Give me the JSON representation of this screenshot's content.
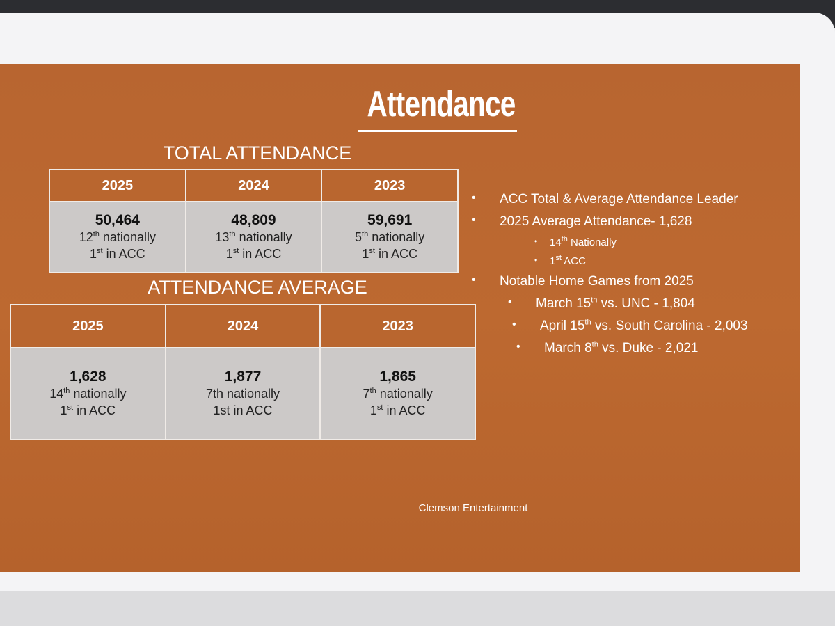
{
  "title": "Attendance",
  "tables": [
    {
      "heading": "TOTAL ATTENDANCE",
      "columns": [
        "2025",
        "2024",
        "2023"
      ],
      "cells": [
        {
          "value": "50,464",
          "lines": [
            [
              {
                "t": "12"
              },
              {
                "sup": "th"
              },
              {
                "t": " nationally"
              }
            ],
            [
              {
                "t": "1"
              },
              {
                "sup": "st"
              },
              {
                "t": " in ACC"
              }
            ]
          ]
        },
        {
          "value": "48,809",
          "lines": [
            [
              {
                "t": "13"
              },
              {
                "sup": "th"
              },
              {
                "t": " nationally"
              }
            ],
            [
              {
                "t": "1"
              },
              {
                "sup": "st"
              },
              {
                "t": " in ACC"
              }
            ]
          ]
        },
        {
          "value": "59,691",
          "lines": [
            [
              {
                "t": "5"
              },
              {
                "sup": "th"
              },
              {
                "t": " nationally"
              }
            ],
            [
              {
                "t": "1"
              },
              {
                "sup": "st"
              },
              {
                "t": " in ACC"
              }
            ]
          ]
        }
      ]
    },
    {
      "heading": "ATTENDANCE AVERAGE",
      "columns": [
        "2025",
        "2024",
        "2023"
      ],
      "cells": [
        {
          "value": "1,628",
          "lines": [
            [
              {
                "t": "14"
              },
              {
                "sup": "th"
              },
              {
                "t": " nationally"
              }
            ],
            [
              {
                "t": "1"
              },
              {
                "sup": "st"
              },
              {
                "t": " in ACC"
              }
            ]
          ]
        },
        {
          "value": "1,877",
          "lines": [
            [
              {
                "t": "7th nationally"
              }
            ],
            [
              {
                "t": "1st in ACC"
              }
            ]
          ]
        },
        {
          "value": "1,865",
          "lines": [
            [
              {
                "t": "7"
              },
              {
                "sup": "th"
              },
              {
                "t": " nationally"
              }
            ],
            [
              {
                "t": "1"
              },
              {
                "sup": "st"
              },
              {
                "t": " in ACC"
              }
            ]
          ]
        }
      ]
    }
  ],
  "bullets": [
    {
      "level": 1,
      "parts": [
        {
          "t": "ACC Total & Average Attendance Leader"
        }
      ]
    },
    {
      "level": 1,
      "parts": [
        {
          "t": "2025 Average Attendance- 1,628"
        }
      ]
    },
    {
      "level": 2,
      "parts": [
        {
          "t": "14"
        },
        {
          "sup": "th"
        },
        {
          "t": " Nationally"
        }
      ]
    },
    {
      "level": 2,
      "parts": [
        {
          "t": "1"
        },
        {
          "sup": "st"
        },
        {
          "t": " ACC"
        }
      ]
    },
    {
      "level": 1,
      "parts": [
        {
          "t": "Notable Home Games from 2025"
        }
      ]
    },
    {
      "level": 3,
      "parts": [
        {
          "t": "March 15"
        },
        {
          "sup": "th"
        },
        {
          "t": " vs. UNC - 1,804"
        }
      ]
    },
    {
      "level": 3,
      "parts": [
        {
          "t": "April 15"
        },
        {
          "sup": "th"
        },
        {
          "t": " vs. South Carolina - 2,003"
        }
      ]
    },
    {
      "level": 3,
      "parts": [
        {
          "t": "March 8"
        },
        {
          "sup": "th"
        },
        {
          "t": " vs. Duke - 2,021"
        }
      ]
    }
  ],
  "footer": "Clemson Entertainment"
}
